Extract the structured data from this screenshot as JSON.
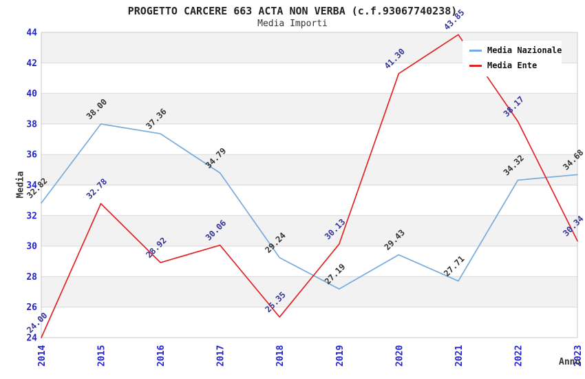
{
  "header": {
    "title": "PROGETTO CARCERE 663 ACTA NON VERBA (c.f.93067740238)",
    "subtitle": "Media Importi"
  },
  "chart_data": {
    "type": "line",
    "title": "PROGETTO CARCERE 663 ACTA NON VERBA (c.f.93067740238)",
    "subtitle": "Media Importi",
    "xlabel": "Anno",
    "ylabel": "Media",
    "x": [
      2014,
      2015,
      2016,
      2017,
      2018,
      2019,
      2020,
      2021,
      2022,
      2023
    ],
    "series": [
      {
        "name": "Media Nazionale",
        "color": "#76abdd",
        "label_color": "#333333",
        "values": [
          32.82,
          38.0,
          37.36,
          34.79,
          29.24,
          27.19,
          29.43,
          27.71,
          34.32,
          34.68
        ]
      },
      {
        "name": "Media Ente",
        "color": "#e02323",
        "label_color": "#333399",
        "values": [
          24.0,
          32.78,
          28.92,
          30.06,
          25.35,
          30.13,
          41.3,
          43.85,
          38.17,
          30.34
        ]
      }
    ],
    "ylim": [
      24,
      44
    ],
    "ytick_step": 2,
    "grid": true,
    "band_fill": true,
    "legend_position": "top-right",
    "styles": {
      "tick_color": "#2222cc",
      "band_color": "#f2f2f2",
      "grid_color": "#d9d9d9",
      "border_color": "#c9c9c9",
      "text_color": "#333333"
    }
  }
}
